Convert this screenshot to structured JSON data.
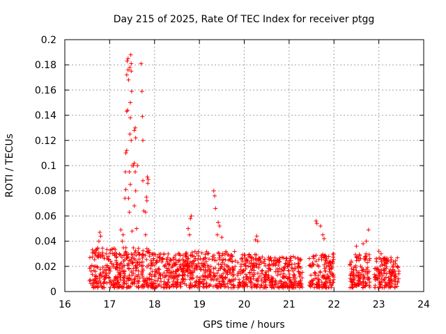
{
  "chart_data": {
    "type": "scatter",
    "title": "Day 215 of 2025, Rate Of TEC Index for receiver ptgg",
    "xlabel": "GPS time / hours",
    "ylabel": "ROTI / TECUs",
    "xlim": [
      16,
      24
    ],
    "ylim": [
      0,
      0.2
    ],
    "xticks": [
      "16",
      "17",
      "18",
      "19",
      "20",
      "21",
      "22",
      "23",
      "24"
    ],
    "yticks": [
      "0",
      "0.02",
      "0.04",
      "0.06",
      "0.08",
      "0.1",
      "0.12",
      "0.14",
      "0.16",
      "0.18",
      "0.2"
    ],
    "grid": true,
    "marker": "+",
    "series": [
      {
        "name": "ROTI",
        "color": "#ff0000",
        "segments": [
          {
            "x": [
              16.55,
              17.9
            ],
            "base": [
              0.003,
              0.035
            ]
          },
          {
            "x": [
              17.9,
              18.5
            ],
            "base": [
              0.003,
              0.03
            ]
          },
          {
            "x": [
              18.5,
              19.8
            ],
            "base": [
              0.003,
              0.032
            ]
          },
          {
            "x": [
              19.85,
              20.4
            ],
            "base": [
              0.003,
              0.03
            ]
          },
          {
            "x": [
              20.4,
              21.3
            ],
            "base": [
              0.003,
              0.028
            ]
          },
          {
            "x": [
              21.45,
              22.0
            ],
            "base": [
              0.003,
              0.03
            ]
          },
          {
            "x": [
              22.35,
              22.8
            ],
            "base": [
              0.003,
              0.03
            ]
          },
          {
            "x": [
              22.9,
              23.45
            ],
            "base": [
              0.003,
              0.027
            ]
          }
        ],
        "highlights": [
          {
            "x": 16.78,
            "y": 0.047
          },
          {
            "x": 16.8,
            "y": 0.044
          },
          {
            "x": 16.76,
            "y": 0.04
          },
          {
            "x": 17.25,
            "y": 0.049
          },
          {
            "x": 17.3,
            "y": 0.045
          },
          {
            "x": 17.28,
            "y": 0.04
          },
          {
            "x": 17.34,
            "y": 0.074
          },
          {
            "x": 17.36,
            "y": 0.081
          },
          {
            "x": 17.35,
            "y": 0.095
          },
          {
            "x": 17.36,
            "y": 0.11
          },
          {
            "x": 17.38,
            "y": 0.112
          },
          {
            "x": 17.38,
            "y": 0.143
          },
          {
            "x": 17.4,
            "y": 0.144
          },
          {
            "x": 17.38,
            "y": 0.172
          },
          {
            "x": 17.39,
            "y": 0.183
          },
          {
            "x": 17.41,
            "y": 0.185
          },
          {
            "x": 17.41,
            "y": 0.176
          },
          {
            "x": 17.42,
            "y": 0.168
          },
          {
            "x": 17.45,
            "y": 0.178
          },
          {
            "x": 17.47,
            "y": 0.188
          },
          {
            "x": 17.48,
            "y": 0.181
          },
          {
            "x": 17.48,
            "y": 0.175
          },
          {
            "x": 17.49,
            "y": 0.159
          },
          {
            "x": 17.46,
            "y": 0.15
          },
          {
            "x": 17.46,
            "y": 0.138
          },
          {
            "x": 17.45,
            "y": 0.125
          },
          {
            "x": 17.48,
            "y": 0.12
          },
          {
            "x": 17.44,
            "y": 0.095
          },
          {
            "x": 17.46,
            "y": 0.085
          },
          {
            "x": 17.44,
            "y": 0.063
          },
          {
            "x": 17.42,
            "y": 0.074
          },
          {
            "x": 17.5,
            "y": 0.1
          },
          {
            "x": 17.53,
            "y": 0.1
          },
          {
            "x": 17.55,
            "y": 0.102
          },
          {
            "x": 17.55,
            "y": 0.128
          },
          {
            "x": 17.57,
            "y": 0.13
          },
          {
            "x": 17.58,
            "y": 0.122
          },
          {
            "x": 17.57,
            "y": 0.095
          },
          {
            "x": 17.58,
            "y": 0.08
          },
          {
            "x": 17.55,
            "y": 0.068
          },
          {
            "x": 17.62,
            "y": 0.1
          },
          {
            "x": 17.7,
            "y": 0.181
          },
          {
            "x": 17.72,
            "y": 0.159
          },
          {
            "x": 17.73,
            "y": 0.139
          },
          {
            "x": 17.74,
            "y": 0.12
          },
          {
            "x": 17.74,
            "y": 0.088
          },
          {
            "x": 17.76,
            "y": 0.064
          },
          {
            "x": 17.8,
            "y": 0.063
          },
          {
            "x": 17.82,
            "y": 0.075
          },
          {
            "x": 17.83,
            "y": 0.072
          },
          {
            "x": 17.84,
            "y": 0.091
          },
          {
            "x": 17.85,
            "y": 0.086
          },
          {
            "x": 17.86,
            "y": 0.089
          },
          {
            "x": 17.8,
            "y": 0.045
          },
          {
            "x": 17.6,
            "y": 0.05
          },
          {
            "x": 17.5,
            "y": 0.048
          },
          {
            "x": 18.75,
            "y": 0.05
          },
          {
            "x": 18.8,
            "y": 0.058
          },
          {
            "x": 18.82,
            "y": 0.06
          },
          {
            "x": 18.78,
            "y": 0.045
          },
          {
            "x": 19.32,
            "y": 0.08
          },
          {
            "x": 19.34,
            "y": 0.076
          },
          {
            "x": 19.36,
            "y": 0.066
          },
          {
            "x": 19.42,
            "y": 0.055
          },
          {
            "x": 19.45,
            "y": 0.052
          },
          {
            "x": 19.4,
            "y": 0.045
          },
          {
            "x": 19.5,
            "y": 0.043
          },
          {
            "x": 20.25,
            "y": 0.041
          },
          {
            "x": 20.28,
            "y": 0.044
          },
          {
            "x": 20.3,
            "y": 0.04
          },
          {
            "x": 21.6,
            "y": 0.056
          },
          {
            "x": 21.62,
            "y": 0.054
          },
          {
            "x": 21.7,
            "y": 0.052
          },
          {
            "x": 21.75,
            "y": 0.045
          },
          {
            "x": 21.78,
            "y": 0.042
          },
          {
            "x": 22.5,
            "y": 0.036
          },
          {
            "x": 22.65,
            "y": 0.038
          },
          {
            "x": 22.72,
            "y": 0.04
          },
          {
            "x": 22.77,
            "y": 0.049
          },
          {
            "x": 23.0,
            "y": 0.032
          },
          {
            "x": 23.05,
            "y": 0.03
          }
        ]
      }
    ]
  }
}
